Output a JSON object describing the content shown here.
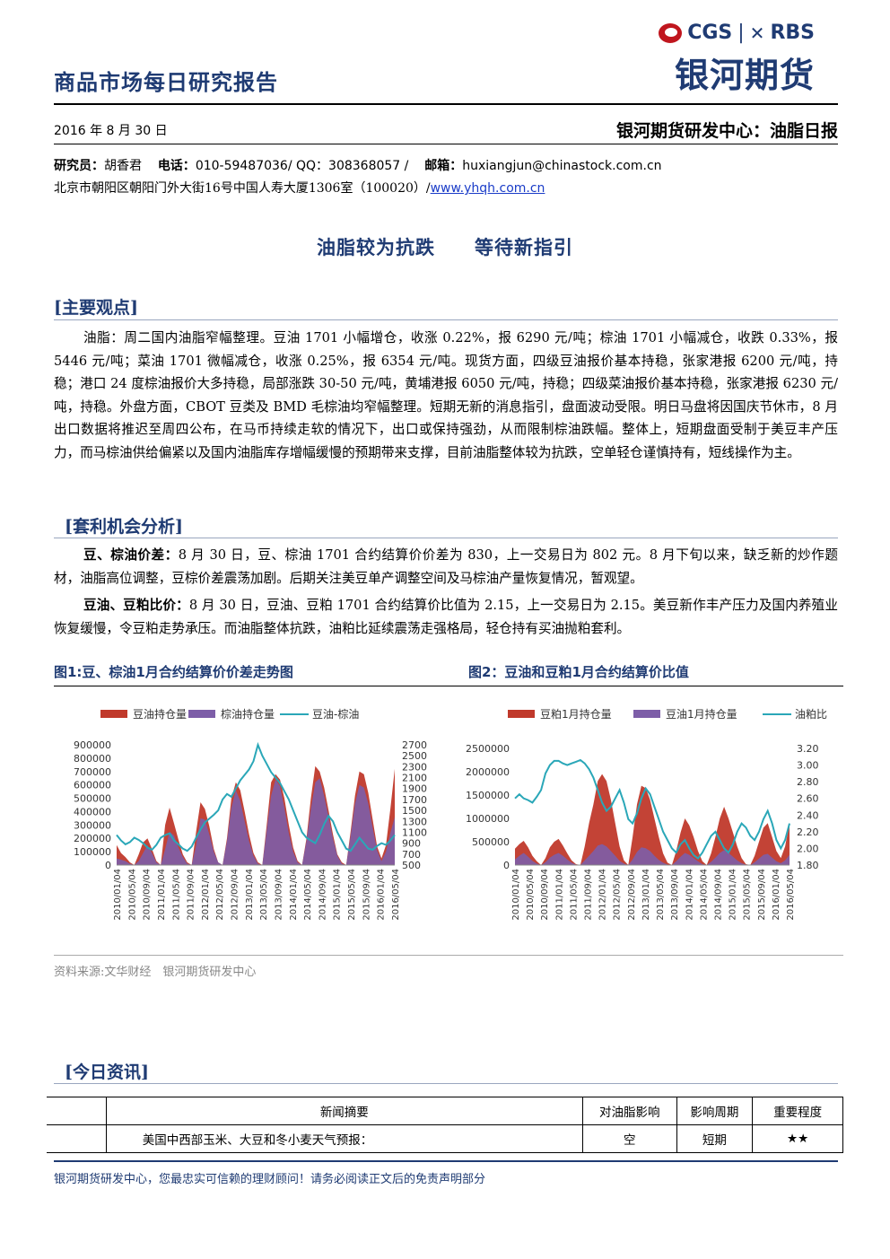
{
  "header": {
    "report_title": "商品市场每日研究报告",
    "logo_cgs": "CGS",
    "logo_sep": "|",
    "logo_rbs": "RBS",
    "logo_big": "银河期货",
    "date": "2016 年 8 月 30 日",
    "dept": "银河期货研发中心：油脂日报",
    "researcher_label": "研究员：",
    "researcher": "胡香君",
    "phone_label": "电话：",
    "phone": "010-59487036/ QQ：308368057 /",
    "email_label": "邮箱：",
    "email": "huxiangjun@chinastock.com.cn",
    "address": "北京市朝阳区朝阳门外大街16号中国人寿大厦1306室（100020）/",
    "website": "www.yhqh.com.cn"
  },
  "main_title": "油脂较为抗跌　　等待新指引",
  "section1": {
    "heading": "[主要观点]",
    "paragraph": "油脂：周二国内油脂窄幅整理。豆油 1701 小幅增仓，收涨 0.22%，报 6290 元/吨；棕油 1701 小幅减仓，收跌 0.33%，报 5446 元/吨；菜油 1701 微幅减仓，收涨 0.25%，报 6354 元/吨。现货方面，四级豆油报价基本持稳，张家港报 6200 元/吨，持稳；港口 24 度棕油报价大多持稳，局部涨跌 30-50 元/吨，黄埔港报 6050 元/吨，持稳；四级菜油报价基本持稳，张家港报 6230 元/吨，持稳。外盘方面，CBOT 豆类及 BMD 毛棕油均窄幅整理。短期无新的消息指引，盘面波动受限。明日马盘将因国庆节休市，8 月出口数据将推迟至周四公布，在马币持续走软的情况下，出口或保持强劲，从而限制棕油跌幅。整体上，短期盘面受制于美豆丰产压力，而马棕油供给偏紧以及国内油脂库存增幅缓慢的预期带来支撑，目前油脂整体较为抗跌，空单轻仓谨慎持有，短线操作为主。"
  },
  "section2": {
    "heading": "[套利机会分析]",
    "p1_label": "豆、棕油价差：",
    "p1_text": "8 月 30 日，豆、棕油 1701 合约结算价价差为 830，上一交易日为 802 元。8 月下旬以来，缺乏新的炒作题材，油脂高位调整，豆棕价差震荡加剧。后期关注美豆单产调整空间及马棕油产量恢复情况，暂观望。",
    "p2_label": "豆油、豆粕比价：",
    "p2_text": "8 月 30 日，豆油、豆粕 1701 合约结算价比值为 2.15，上一交易日为 2.15。美豆新作丰产压力及国内养殖业恢复缓慢，令豆粕走势承压。而油脂整体抗跌，油粕比延续震荡走强格局，轻仓持有买油抛粕套利。"
  },
  "figures": {
    "fig1_caption": "图1:豆、棕油1月合约结算价价差走势图",
    "fig2_caption": "图2：豆油和豆粕1月合约结算价比值",
    "source": "资料来源:文华财经　银河期货研发中心"
  },
  "chart_data": [
    {
      "type": "area",
      "legend": [
        "豆油持仓量",
        "棕油持仓量",
        "豆油-棕油"
      ],
      "colors": {
        "bar1": "#c0392b",
        "bar2": "#7d5ea8",
        "line": "#2aa7b8"
      },
      "legend_position": "top",
      "ylim_left": [
        0,
        900000
      ],
      "yticks_left": [
        "900000",
        "800000",
        "700000",
        "600000",
        "500000",
        "400000",
        "300000",
        "200000",
        "100000",
        "0"
      ],
      "ylim_right": [
        500,
        2700
      ],
      "yticks_right": [
        "2700",
        "2500",
        "2300",
        "2100",
        "1900",
        "1700",
        "1500",
        "1300",
        "1100",
        "900",
        "700",
        "500"
      ],
      "xticks": [
        "2010/01/04",
        "2010/05/04",
        "2010/09/04",
        "2011/01/04",
        "2011/05/04",
        "2011/09/04",
        "2012/01/04",
        "2012/05/04",
        "2012/09/04",
        "2013/01/04",
        "2013/05/04",
        "2013/09/04",
        "2014/01/04",
        "2014/05/04",
        "2014/09/04",
        "2015/01/04",
        "2015/05/04",
        "2015/09/04",
        "2016/01/04",
        "2016/05/04"
      ],
      "series": [
        {
          "name": "豆油持仓量",
          "values": [
            150000,
            90000,
            60000,
            20000,
            0,
            80000,
            170000,
            200000,
            120000,
            30000,
            0,
            300000,
            430000,
            310000,
            190000,
            80000,
            20000,
            0,
            250000,
            470000,
            420000,
            290000,
            120000,
            20000,
            0,
            200000,
            500000,
            620000,
            560000,
            400000,
            230000,
            90000,
            20000,
            0,
            300000,
            620000,
            680000,
            640000,
            500000,
            300000,
            130000,
            30000,
            0,
            200000,
            500000,
            740000,
            700000,
            580000,
            410000,
            230000,
            80000,
            20000,
            0,
            250000,
            520000,
            700000,
            680000,
            540000,
            340000,
            140000,
            50000,
            150000,
            420000,
            720000
          ]
        },
        {
          "name": "棕油持仓量",
          "values": [
            50000,
            40000,
            30000,
            10000,
            0,
            30000,
            90000,
            150000,
            90000,
            20000,
            0,
            120000,
            250000,
            220000,
            130000,
            60000,
            10000,
            0,
            150000,
            350000,
            340000,
            230000,
            100000,
            20000,
            0,
            180000,
            430000,
            560000,
            480000,
            330000,
            180000,
            70000,
            10000,
            0,
            260000,
            520000,
            640000,
            590000,
            430000,
            240000,
            100000,
            20000,
            0,
            180000,
            420000,
            620000,
            650000,
            520000,
            360000,
            200000,
            70000,
            10000,
            0,
            220000,
            460000,
            600000,
            580000,
            460000,
            280000,
            110000,
            30000,
            100000,
            240000,
            360000
          ]
        },
        {
          "name": "豆油-棕油",
          "values": [
            1050,
            950,
            880,
            920,
            1000,
            960,
            900,
            820,
            780,
            870,
            1000,
            1050,
            1080,
            950,
            880,
            800,
            760,
            840,
            1000,
            1150,
            1280,
            1350,
            1420,
            1500,
            1700,
            1800,
            1750,
            1900,
            2050,
            2150,
            2250,
            2400,
            2700,
            2500,
            2350,
            2200,
            2100,
            2000,
            1850,
            1700,
            1500,
            1300,
            1100,
            1000,
            950,
            900,
            1050,
            1250,
            1400,
            1300,
            1100,
            950,
            800,
            760,
            880,
            1000,
            900,
            800,
            780,
            850,
            900,
            870,
            950,
            1050
          ]
        }
      ]
    },
    {
      "type": "area",
      "legend": [
        "豆粕1月持仓量",
        "豆油1月持仓量",
        "油粕比"
      ],
      "colors": {
        "bar1": "#c0392b",
        "bar2": "#7d5ea8",
        "line": "#2aa7b8"
      },
      "legend_position": "top",
      "ylim_left": [
        0,
        2500000
      ],
      "yticks_left": [
        "2500000",
        "2000000",
        "1500000",
        "1000000",
        "500000",
        "0"
      ],
      "ylim_right": [
        1.8,
        3.2
      ],
      "yticks_right": [
        "3.20",
        "3.00",
        "2.80",
        "2.60",
        "2.40",
        "2.20",
        "2.00",
        "1.80"
      ],
      "xticks": [
        "2010/01/04",
        "2010/05/04",
        "2010/09/04",
        "2011/01/04",
        "2011/05/04",
        "2011/09/04",
        "2012/01/04",
        "2012/05/04",
        "2012/09/04",
        "2013/01/04",
        "2013/05/04",
        "2013/09/04",
        "2014/01/04",
        "2014/05/04",
        "2014/09/04",
        "2015/01/04",
        "2015/05/04",
        "2015/09/04",
        "2016/01/04",
        "2016/05/04"
      ],
      "series": [
        {
          "name": "豆粕1月持仓量",
          "values": [
            350000,
            450000,
            520000,
            380000,
            200000,
            80000,
            0,
            150000,
            380000,
            500000,
            560000,
            420000,
            250000,
            100000,
            20000,
            0,
            400000,
            900000,
            1300000,
            1800000,
            1950000,
            1800000,
            1400000,
            900000,
            400000,
            100000,
            0,
            600000,
            1300000,
            1700000,
            1650000,
            1400000,
            1000000,
            600000,
            250000,
            50000,
            0,
            300000,
            700000,
            1000000,
            850000,
            600000,
            300000,
            80000,
            0,
            250000,
            600000,
            1000000,
            1250000,
            1000000,
            700000,
            400000,
            150000,
            20000,
            0,
            200000,
            500000,
            800000,
            900000,
            600000,
            300000,
            150000,
            400000,
            900000
          ]
        },
        {
          "name": "豆油1月持仓量",
          "values": [
            120000,
            200000,
            260000,
            180000,
            90000,
            30000,
            0,
            60000,
            160000,
            220000,
            260000,
            200000,
            120000,
            50000,
            10000,
            0,
            100000,
            200000,
            300000,
            420000,
            450000,
            400000,
            300000,
            200000,
            90000,
            30000,
            0,
            120000,
            280000,
            380000,
            360000,
            300000,
            200000,
            110000,
            50000,
            10000,
            0,
            80000,
            180000,
            260000,
            220000,
            150000,
            80000,
            20000,
            0,
            70000,
            160000,
            260000,
            320000,
            260000,
            180000,
            100000,
            40000,
            10000,
            0,
            60000,
            140000,
            220000,
            240000,
            160000,
            80000,
            40000,
            100000,
            220000
          ]
        },
        {
          "name": "油粕比",
          "values": [
            2.6,
            2.65,
            2.6,
            2.58,
            2.55,
            2.62,
            2.7,
            2.9,
            3.0,
            3.05,
            3.05,
            3.02,
            3.0,
            3.02,
            3.04,
            3.06,
            3.02,
            2.95,
            2.85,
            2.7,
            2.55,
            2.45,
            2.5,
            2.6,
            2.7,
            2.55,
            2.35,
            2.3,
            2.42,
            2.6,
            2.72,
            2.65,
            2.5,
            2.35,
            2.2,
            2.1,
            2.0,
            1.95,
            2.05,
            2.1,
            2.0,
            1.92,
            1.88,
            1.95,
            2.05,
            2.15,
            2.2,
            2.1,
            2.0,
            1.95,
            2.05,
            2.2,
            2.3,
            2.25,
            2.15,
            2.1,
            2.2,
            2.35,
            2.45,
            2.3,
            2.1,
            2.0,
            2.1,
            2.3
          ]
        }
      ]
    }
  ],
  "section3": {
    "heading": "[今日资讯]",
    "table_headers": [
      "新闻摘要",
      "对油脂影响",
      "影响周期",
      "重要程度"
    ],
    "rows": [
      {
        "summary": "美国中西部玉米、大豆和冬小麦天气预报：",
        "impact": "空",
        "period": "短期",
        "importance": "★★"
      }
    ]
  },
  "footer": {
    "text": "银河期货研发中心，您最忠实可信赖的理财顾问！请务必阅读正文后的免责声明部分"
  }
}
